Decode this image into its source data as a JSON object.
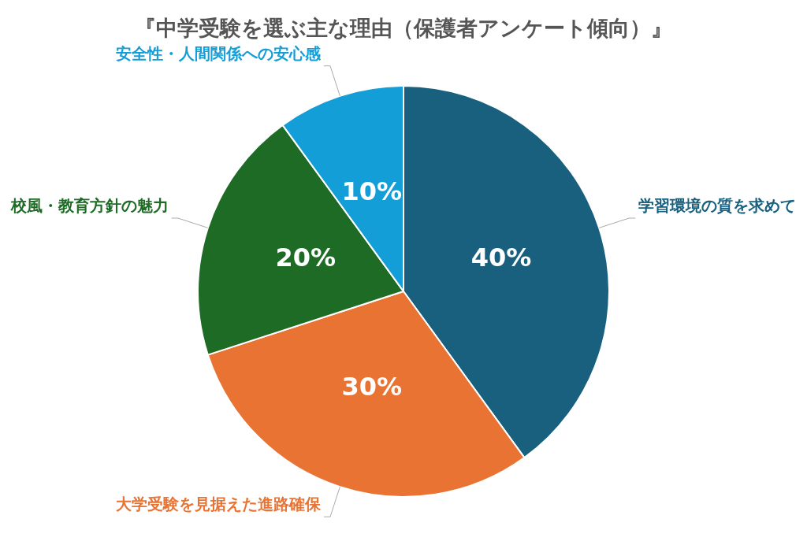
{
  "chart_data": {
    "type": "pie",
    "title": "『中学受験を選ぶ主な理由（保護者アンケート傾向）』",
    "categories": [
      "学習環境の質を求めて",
      "大学受験を見据えた進路確保",
      "校風・教育方針の魅力",
      "安全性・人間関係への安心感"
    ],
    "values": [
      40,
      30,
      20,
      10
    ],
    "colors": [
      "#19607f",
      "#e87332",
      "#1e6b25",
      "#149ed8"
    ],
    "value_labels": [
      "40%",
      "30%",
      "20%",
      "10%"
    ],
    "legend": false
  }
}
